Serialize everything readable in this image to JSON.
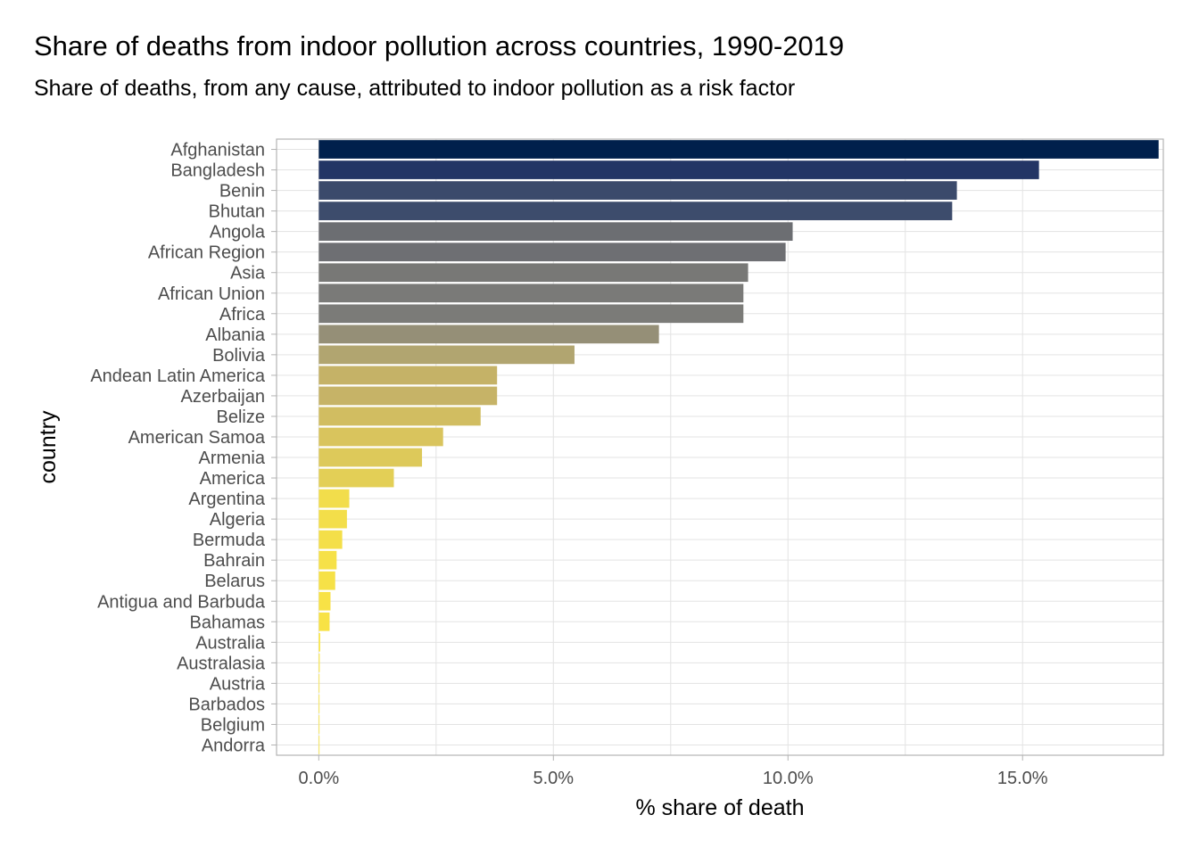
{
  "chart_data": {
    "type": "bar",
    "orientation": "horizontal",
    "title": "Share of deaths from indoor pollution across countries, 1990-2019",
    "subtitle": "Share of deaths, from any cause, attributed to indoor pollution as a risk factor",
    "xlabel": "% share of death",
    "ylabel": "country",
    "xlim": [
      -0.9,
      18.0
    ],
    "xticks": [
      0,
      5,
      10,
      15
    ],
    "xtick_labels": [
      "0.0%",
      "5.0%",
      "10.0%",
      "15.0%"
    ],
    "grid": true,
    "legend": "none",
    "categories": [
      "Afghanistan",
      "Bangladesh",
      "Benin",
      "Bhutan",
      "Angola",
      "African Region",
      "Asia",
      "African Union",
      "Africa",
      "Albania",
      "Bolivia",
      "Andean Latin America",
      "Azerbaijan",
      "Belize",
      "American Samoa",
      "Armenia",
      "America",
      "Argentina",
      "Algeria",
      "Bermuda",
      "Bahrain",
      "Belarus",
      "Antigua and Barbuda",
      "Bahamas",
      "Australia",
      "Australasia",
      "Austria",
      "Barbados",
      "Belgium",
      "Andorra"
    ],
    "values": [
      17.9,
      15.35,
      13.6,
      13.5,
      10.1,
      9.95,
      9.15,
      9.05,
      9.05,
      7.25,
      5.45,
      3.8,
      3.8,
      3.45,
      2.65,
      2.2,
      1.6,
      0.65,
      0.6,
      0.5,
      0.38,
      0.35,
      0.25,
      0.23,
      0.03,
      0.02,
      0.01,
      0.01,
      0.01,
      0.0
    ],
    "colors": [
      "#00204c",
      "#233565",
      "#3b4a6b",
      "#3d4c6c",
      "#6c6e72",
      "#6e6f73",
      "#787876",
      "#7a7a78",
      "#7b7b78",
      "#958f77",
      "#b1a570",
      "#c5b267",
      "#c6b367",
      "#d1bd61",
      "#d9c45d",
      "#ddc95a",
      "#e3cf56",
      "#f2dd4b",
      "#f3de4a",
      "#f4df49",
      "#f6e148",
      "#f6e147",
      "#f8e246",
      "#f8e245",
      "#fde83b",
      "#fde83b",
      "#fde83b",
      "#fee93a",
      "#fee93a",
      "#fee93a"
    ]
  }
}
